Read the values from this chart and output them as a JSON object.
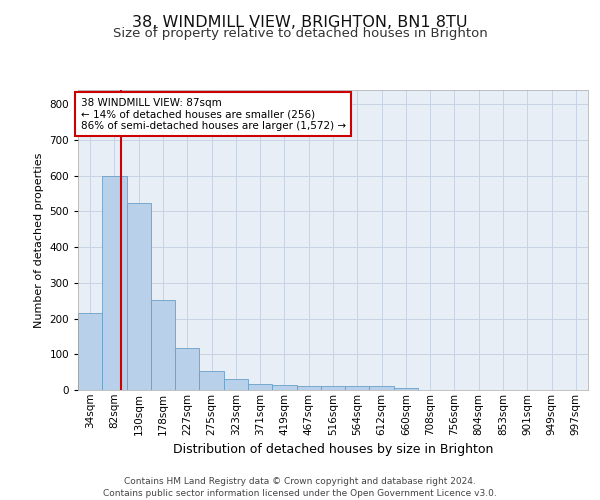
{
  "title": "38, WINDMILL VIEW, BRIGHTON, BN1 8TU",
  "subtitle": "Size of property relative to detached houses in Brighton",
  "xlabel": "Distribution of detached houses by size in Brighton",
  "ylabel": "Number of detached properties",
  "bar_labels": [
    "34sqm",
    "82sqm",
    "130sqm",
    "178sqm",
    "227sqm",
    "275sqm",
    "323sqm",
    "371sqm",
    "419sqm",
    "467sqm",
    "516sqm",
    "564sqm",
    "612sqm",
    "660sqm",
    "708sqm",
    "756sqm",
    "804sqm",
    "853sqm",
    "901sqm",
    "949sqm",
    "997sqm"
  ],
  "bar_values": [
    215,
    600,
    525,
    253,
    117,
    53,
    30,
    18,
    15,
    10,
    10,
    10,
    10,
    7,
    0,
    0,
    0,
    0,
    0,
    0,
    0
  ],
  "bar_color": "#b8d0ea",
  "bar_edge_color": "#6a9fc8",
  "grid_color": "#c8d4e4",
  "background_color": "#e8eef6",
  "annotation_box_text": "38 WINDMILL VIEW: 87sqm\n← 14% of detached houses are smaller (256)\n86% of semi-detached houses are larger (1,572) →",
  "annotation_box_color": "#ffffff",
  "annotation_box_edge_color": "#cc0000",
  "vline_color": "#cc0000",
  "vline_x": 1.28,
  "ylim": [
    0,
    840
  ],
  "yticks": [
    0,
    100,
    200,
    300,
    400,
    500,
    600,
    700,
    800
  ],
  "footer_line1": "Contains HM Land Registry data © Crown copyright and database right 2024.",
  "footer_line2": "Contains public sector information licensed under the Open Government Licence v3.0.",
  "title_fontsize": 11.5,
  "subtitle_fontsize": 9.5,
  "xlabel_fontsize": 9,
  "ylabel_fontsize": 8,
  "tick_fontsize": 7.5,
  "footer_fontsize": 6.5,
  "ann_fontsize": 7.5
}
